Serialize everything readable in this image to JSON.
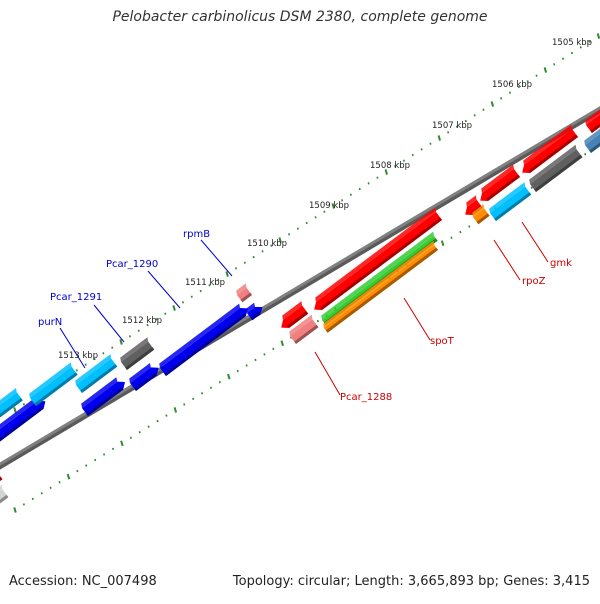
{
  "map": {
    "title": "Pelobacter carbinolicus DSM 2380, complete genome",
    "accession": "Accession: NC_007498",
    "topology": "Topology: circular;",
    "length": "Length: 3,665,893 bp;",
    "genes": "Genes: 3,415"
  },
  "ruler": {
    "labels": [
      "1505 kbp",
      "1506 kbp",
      "1507 kbp",
      "1508 kbp",
      "1509 kbp",
      "1510 kbp",
      "1511 kbp",
      "1512 kbp",
      "1513 kbp"
    ]
  },
  "genes": {
    "forward": [
      {
        "label": "purN",
        "color": "#1e90ff"
      },
      {
        "label": "Pcar_1291",
        "color": "#1e90ff"
      },
      {
        "label": "Pcar_1290",
        "color": "#0000ff"
      },
      {
        "label": "rpmB",
        "color": "#0000ff"
      }
    ],
    "reverse": [
      {
        "label": "Pcar_1288",
        "color": "#ff0000"
      },
      {
        "label": "spoT",
        "color": "#ff0000"
      },
      {
        "label": "rpoZ",
        "color": "#ff0000"
      },
      {
        "label": "gmk",
        "color": "#ff0000"
      }
    ]
  },
  "colors": {
    "forward_label": "#0000cc",
    "reverse_label": "#cc0000",
    "backbone": "#808080",
    "ticks": "#2e8b2e",
    "red_gene": "#ff0000",
    "pink_gene": "#f08080",
    "cyan_gene": "#00bfff",
    "blue_gene": "#0000ee",
    "gray_gene": "#606060",
    "green_gene": "#33cc33",
    "orange_gene": "#ff8c00",
    "steel_gene": "#4682b4"
  }
}
